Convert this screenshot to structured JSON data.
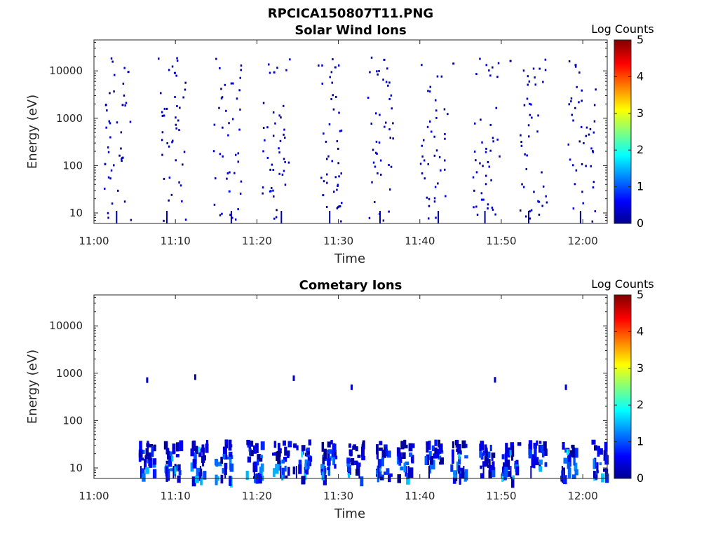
{
  "figure_title": "RPCICA150807T11.PNG",
  "colorbar": {
    "label": "Log Counts",
    "ticks": [
      "0",
      "1",
      "2",
      "3",
      "4",
      "5"
    ],
    "range": [
      0,
      5
    ],
    "colormap": "jet"
  },
  "chart_data": [
    {
      "type": "heatmap",
      "title": "Solar Wind Ions",
      "xlabel": "Time",
      "ylabel": "Energy (eV)",
      "y_scale": "log",
      "ylim": [
        6,
        45000
      ],
      "xlim": [
        "11:00",
        "12:03"
      ],
      "x_ticks": [
        "11:00",
        "11:10",
        "11:20",
        "11:30",
        "11:40",
        "11:50",
        "12:00"
      ],
      "y_ticks": [
        "10",
        "100",
        "1000",
        "10000"
      ],
      "bursts_center_minutes": [
        2.8,
        9.5,
        16.3,
        22.3,
        28.6,
        35.0,
        41.7,
        48.0,
        53.8,
        59.8
      ],
      "burst_energy_range_eV": [
        6,
        20000
      ],
      "value_range_log_counts": [
        0,
        0.8
      ],
      "points": [
        {
          "t": 4.1,
          "e": 10000,
          "v": 0.3
        },
        {
          "t": 9.8,
          "e": 9500,
          "v": 0.3
        },
        {
          "t": 22.0,
          "e": 9800,
          "v": 0.3
        },
        {
          "t": 29.5,
          "e": 12500,
          "v": 0.3
        },
        {
          "t": 35.5,
          "e": 18000,
          "v": 0.3
        },
        {
          "t": 44.0,
          "e": 15000,
          "v": 0.3
        },
        {
          "t": 51.0,
          "e": 17000,
          "v": 0.3
        },
        {
          "t": 59.0,
          "e": 14000,
          "v": 0.3
        },
        {
          "t": 3.4,
          "e": 2000,
          "v": 0.3
        },
        {
          "t": 16.5,
          "e": 30,
          "v": 0.7
        },
        {
          "t": 21.5,
          "e": 30,
          "v": 0.7
        },
        {
          "t": 28.0,
          "e": 25,
          "v": 0.7
        },
        {
          "t": 47.5,
          "e": 20,
          "v": 0.6
        },
        {
          "t": 54.5,
          "e": 18,
          "v": 0.7
        }
      ]
    },
    {
      "type": "heatmap",
      "title": "Cometary Ions",
      "xlabel": "Time",
      "ylabel": "Energy (eV)",
      "y_scale": "log",
      "ylim": [
        6,
        45000
      ],
      "xlim": [
        "11:00",
        "12:03"
      ],
      "x_ticks": [
        "11:00",
        "11:10",
        "11:20",
        "11:30",
        "11:40",
        "11:50",
        "12:00"
      ],
      "y_ticks": [
        "10",
        "100",
        "1000",
        "10000"
      ],
      "bursts_center_minutes": [
        6.3,
        9.5,
        12.8,
        15.8,
        19.5,
        22.8,
        25.4,
        28.6,
        32.0,
        35.5,
        38.0,
        41.5,
        44.7,
        48.0,
        51.0,
        54.3,
        58.0,
        62.0
      ],
      "burst_energy_range_eV": [
        6,
        40
      ],
      "value_range_log_counts": [
        0,
        1.9
      ],
      "points": [
        {
          "t": 12.3,
          "e": 950,
          "v": 0.3
        },
        {
          "t": 24.4,
          "e": 900,
          "v": 0.3
        },
        {
          "t": 31.5,
          "e": 580,
          "v": 0.3
        },
        {
          "t": 6.4,
          "e": 820,
          "v": 0.3
        },
        {
          "t": 49.1,
          "e": 830,
          "v": 0.3
        },
        {
          "t": 57.8,
          "e": 580,
          "v": 0.3
        },
        {
          "t": 12.8,
          "e": 28,
          "v": 1.9
        },
        {
          "t": 25.4,
          "e": 22,
          "v": 1.8
        },
        {
          "t": 44.7,
          "e": 20,
          "v": 1.6
        },
        {
          "t": 51.0,
          "e": 24,
          "v": 1.5
        },
        {
          "t": 58.0,
          "e": 25,
          "v": 1.8
        },
        {
          "t": 9.5,
          "e": 18,
          "v": 1.6
        }
      ]
    }
  ]
}
